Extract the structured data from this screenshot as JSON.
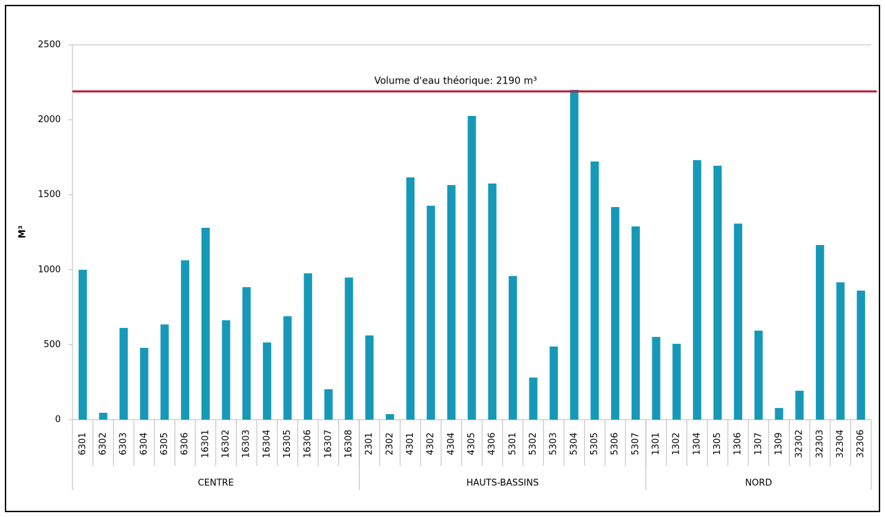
{
  "chart_data": {
    "type": "bar",
    "y_label": "M³",
    "color": "#1699b9",
    "ylim": [
      0,
      2500
    ],
    "yticks": [
      0,
      500,
      1000,
      1500,
      2000,
      2500
    ],
    "reference_line": {
      "value": 2190,
      "label": "Volume d'eau théorique: 2190 m³",
      "color": "#b5233a"
    },
    "groups": [
      {
        "name": "CENTRE",
        "categories": [
          "6301",
          "6302",
          "6303",
          "6304",
          "6305",
          "6306",
          "16301",
          "16302",
          "16303",
          "16304",
          "16305",
          "16306",
          "16307",
          "16308"
        ],
        "values": [
          1000,
          46,
          612,
          479,
          635,
          1063,
          1280,
          663,
          884,
          515,
          690,
          976,
          203,
          948
        ]
      },
      {
        "name": "HAUTS-BASSINS",
        "categories": [
          "2301",
          "2302",
          "4301",
          "4302",
          "4304",
          "4305",
          "4306",
          "5301",
          "5302",
          "5303",
          "5304",
          "5305",
          "5306",
          "5307"
        ],
        "values": [
          562,
          37,
          1616,
          1427,
          1565,
          2026,
          1575,
          958,
          281,
          488,
          2200,
          1722,
          1418,
          1289
        ]
      },
      {
        "name": "NORD",
        "categories": [
          "1301",
          "1302",
          "1304",
          "1305",
          "1306",
          "1307",
          "1309",
          "32302",
          "32303",
          "32304",
          "32306"
        ],
        "values": [
          552,
          506,
          1731,
          1694,
          1308,
          594,
          78,
          193,
          1165,
          916,
          861
        ]
      }
    ]
  }
}
